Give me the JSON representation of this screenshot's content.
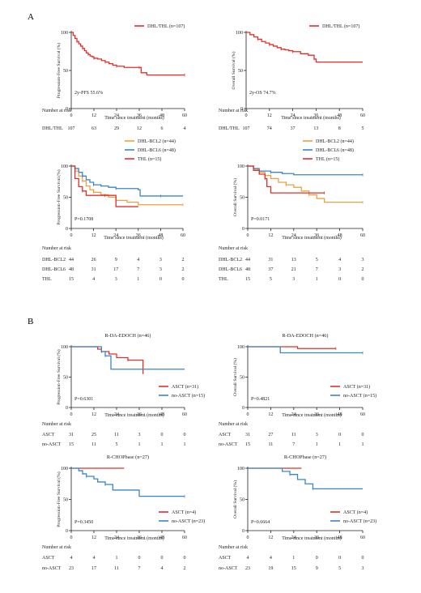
{
  "section_labels": [
    "A",
    "B"
  ],
  "colors": {
    "red": "#e0302a",
    "orange": "#f0a040",
    "blue": "#3a86c8",
    "axis": "#222222"
  },
  "chart_data": [
    {
      "type": "line",
      "panel": "a1",
      "ylabel": "Progression-Free Survival (%)",
      "xlabel": "Time since treatment (months)",
      "xticks": [
        0,
        12,
        24,
        36,
        48,
        60
      ],
      "yticks": [
        0,
        50,
        100
      ],
      "xlim": [
        0,
        60
      ],
      "ylim": [
        0,
        100
      ],
      "annotation": "2y-PFS 55.6%",
      "series": [
        {
          "name": "DHL/THL (n=107)",
          "color": "red",
          "x": [
            0,
            1,
            2,
            3,
            4,
            5,
            6,
            7,
            8,
            9,
            10,
            11,
            12,
            14,
            16,
            18,
            20,
            22,
            24,
            28,
            32,
            36,
            37,
            40,
            60
          ],
          "y": [
            100,
            96,
            92,
            88,
            85,
            82,
            79,
            76,
            73,
            71,
            69,
            68,
            66,
            65,
            63,
            61,
            59,
            57,
            55.6,
            54,
            54,
            54,
            47,
            44,
            44
          ]
        }
      ],
      "risk_table": {
        "label": "Number at risk",
        "rows": [
          {
            "name": "DHL/THL",
            "values": [
              "107",
              "63",
              "29",
              "12",
              "6",
              "4"
            ]
          }
        ]
      }
    },
    {
      "type": "line",
      "panel": "a2",
      "ylabel": "Overall Survival (%)",
      "xlabel": "Time since treatment (months)",
      "xticks": [
        0,
        12,
        24,
        36,
        48,
        60
      ],
      "yticks": [
        0,
        50,
        100
      ],
      "xlim": [
        0,
        60
      ],
      "ylim": [
        0,
        100
      ],
      "annotation": "2y-OS 74.7%",
      "series": [
        {
          "name": "DHL/THL (n=107)",
          "color": "red",
          "x": [
            0,
            2,
            4,
            6,
            8,
            10,
            12,
            14,
            16,
            18,
            20,
            22,
            24,
            28,
            32,
            35,
            36,
            60
          ],
          "y": [
            100,
            97,
            94,
            91,
            88,
            86,
            84,
            82,
            80,
            78,
            77,
            76,
            74.7,
            72,
            70,
            65,
            61,
            61
          ]
        }
      ],
      "risk_table": {
        "label": "Number at risk",
        "rows": [
          {
            "name": "DHL/THL",
            "values": [
              "107",
              "74",
              "37",
              "13",
              "8",
              "5"
            ]
          }
        ]
      }
    },
    {
      "type": "line",
      "panel": "a3",
      "ylabel": "Progression-Free Survival (%)",
      "xlabel": "Time since treatment (months)",
      "xticks": [
        0,
        12,
        24,
        36,
        48,
        60
      ],
      "yticks": [
        0,
        50,
        100
      ],
      "xlim": [
        0,
        60
      ],
      "ylim": [
        0,
        100
      ],
      "annotation": "P=0.1708",
      "series": [
        {
          "name": "DHL-BCL2 (n=44)",
          "color": "orange",
          "x": [
            0,
            2,
            4,
            6,
            8,
            10,
            12,
            16,
            20,
            24,
            30,
            36,
            60
          ],
          "y": [
            100,
            92,
            84,
            76,
            68,
            62,
            58,
            54,
            50,
            45,
            42,
            38,
            38
          ]
        },
        {
          "name": "DHL-BCL6 (n=48)",
          "color": "blue",
          "x": [
            0,
            2,
            4,
            6,
            8,
            10,
            12,
            16,
            20,
            24,
            36,
            37,
            48,
            60
          ],
          "y": [
            100,
            96,
            90,
            84,
            78,
            74,
            70,
            68,
            66,
            64,
            62,
            52,
            52,
            52
          ]
        },
        {
          "name": "THL (n=15)",
          "color": "red",
          "x": [
            0,
            2,
            4,
            6,
            8,
            10,
            18,
            24,
            36
          ],
          "y": [
            100,
            80,
            67,
            60,
            53,
            53,
            53,
            35,
            35
          ]
        }
      ],
      "risk_table": {
        "label": "Number at risk",
        "rows": [
          {
            "name": "DHL-BCL2",
            "values": [
              "44",
              "26",
              "9",
              "4",
              "3",
              "2"
            ]
          },
          {
            "name": "DHL-BCL6",
            "values": [
              "48",
              "31",
              "17",
              "7",
              "3",
              "2"
            ]
          },
          {
            "name": "THL",
            "values": [
              "15",
              "4",
              "3",
              "1",
              "0",
              "0"
            ]
          }
        ]
      }
    },
    {
      "type": "line",
      "panel": "a4",
      "ylabel": "Overall Survival (%)",
      "xlabel": "Time since treatment (months)",
      "xticks": [
        0,
        12,
        24,
        36,
        48,
        60
      ],
      "yticks": [
        0,
        50,
        100
      ],
      "xlim": [
        0,
        60
      ],
      "ylim": [
        0,
        100
      ],
      "annotation": "P=0.0171",
      "series": [
        {
          "name": "DHL-BCL2 (n=44)",
          "color": "orange",
          "x": [
            0,
            3,
            6,
            9,
            12,
            16,
            20,
            24,
            28,
            32,
            36,
            40,
            60
          ],
          "y": [
            100,
            95,
            90,
            85,
            80,
            74,
            70,
            66,
            60,
            54,
            48,
            42,
            42
          ]
        },
        {
          "name": "DHL-BCL6 (n=48)",
          "color": "blue",
          "x": [
            0,
            3,
            6,
            12,
            18,
            24,
            60
          ],
          "y": [
            100,
            96,
            92,
            90,
            88,
            86,
            86
          ]
        },
        {
          "name": "THL (n=15)",
          "color": "red",
          "x": [
            0,
            3,
            6,
            9,
            10,
            12,
            40
          ],
          "y": [
            100,
            93,
            87,
            80,
            67,
            57,
            57
          ]
        }
      ],
      "risk_table": {
        "label": "Number at risk",
        "rows": [
          {
            "name": "DHL-BCL2",
            "values": [
              "44",
              "31",
              "13",
              "5",
              "4",
              "3"
            ]
          },
          {
            "name": "DHL-BCL6",
            "values": [
              "48",
              "37",
              "21",
              "7",
              "3",
              "2"
            ]
          },
          {
            "name": "THL",
            "values": [
              "15",
              "5",
              "3",
              "1",
              "0",
              "0"
            ]
          }
        ]
      }
    },
    {
      "type": "line",
      "panel": "b1",
      "title": "R-DA-EDOCH (n=46)",
      "ylabel": "Progression-Free Survival (%)",
      "xlabel": "Time since treatment (months)",
      "xticks": [
        0,
        12,
        24,
        36,
        48,
        60
      ],
      "yticks": [
        0,
        50,
        100
      ],
      "xlim": [
        0,
        60
      ],
      "ylim": [
        0,
        100
      ],
      "annotation": "P=0.6301",
      "series": [
        {
          "name": "ASCT (n=31)",
          "color": "red",
          "x": [
            0,
            12,
            14,
            16,
            20,
            24,
            30,
            36,
            38
          ],
          "y": [
            100,
            100,
            96,
            92,
            88,
            82,
            78,
            78,
            55
          ]
        },
        {
          "name": "no-ASCT (n=15)",
          "color": "blue",
          "x": [
            0,
            12,
            16,
            18,
            21,
            60
          ],
          "y": [
            100,
            100,
            92,
            85,
            63,
            63
          ]
        }
      ],
      "risk_table": {
        "label": "Number at risk",
        "rows": [
          {
            "name": "ASCT",
            "values": [
              "31",
              "25",
              "11",
              "3",
              "0",
              "0"
            ]
          },
          {
            "name": "no-ASCT",
            "values": [
              "15",
              "11",
              "5",
              "1",
              "1",
              "1"
            ]
          }
        ]
      }
    },
    {
      "type": "line",
      "panel": "b2",
      "title": "R-DA-EDOCH (n=46)",
      "ylabel": "Overall Survival (%)",
      "xlabel": "Time since treatment (months)",
      "xticks": [
        0,
        12,
        24,
        36,
        48,
        60
      ],
      "yticks": [
        0,
        50,
        100
      ],
      "xlim": [
        0,
        60
      ],
      "ylim": [
        0,
        100
      ],
      "annotation": "P=0.4821",
      "series": [
        {
          "name": "ASCT (n=31)",
          "color": "red",
          "x": [
            0,
            18,
            26,
            46
          ],
          "y": [
            100,
            100,
            97,
            97
          ]
        },
        {
          "name": "no-ASCT (n=15)",
          "color": "blue",
          "x": [
            0,
            14,
            17,
            60
          ],
          "y": [
            100,
            100,
            90,
            90
          ]
        }
      ],
      "risk_table": {
        "label": "Number at risk",
        "rows": [
          {
            "name": "ASCT",
            "values": [
              "31",
              "27",
              "11",
              "3",
              "0",
              "0"
            ]
          },
          {
            "name": "no-ASCT",
            "values": [
              "15",
              "11",
              "7",
              "1",
              "1",
              "1"
            ]
          }
        ]
      }
    },
    {
      "type": "line",
      "panel": "b3",
      "title": "R-CHOPbase (n=27)",
      "ylabel": "Progression-Free Survival (%)",
      "xlabel": "Time since treatment (months)",
      "xticks": [
        0,
        12,
        24,
        36,
        48,
        60
      ],
      "yticks": [
        0,
        50,
        100
      ],
      "xlim": [
        0,
        60
      ],
      "ylim": [
        0,
        100
      ],
      "annotation": "P=0.3450",
      "series": [
        {
          "name": "ASCT (n=4)",
          "color": "red",
          "x": [
            0,
            28
          ],
          "y": [
            100,
            100
          ]
        },
        {
          "name": "no-ASCT (n=23)",
          "color": "blue",
          "x": [
            0,
            4,
            6,
            8,
            12,
            14,
            18,
            22,
            36,
            60
          ],
          "y": [
            100,
            96,
            91,
            87,
            83,
            78,
            74,
            65,
            55,
            55
          ]
        }
      ],
      "risk_table": {
        "label": "Number at risk",
        "rows": [
          {
            "name": "ASCT",
            "values": [
              "4",
              "4",
              "1",
              "0",
              "0",
              "0"
            ]
          },
          {
            "name": "no-ASCT",
            "values": [
              "23",
              "17",
              "11",
              "7",
              "4",
              "2"
            ]
          }
        ]
      }
    },
    {
      "type": "line",
      "panel": "b4",
      "title": "R-CHOPbase (n=27)",
      "ylabel": "Overall Survival (%)",
      "xlabel": "Time since treatment (months)",
      "xticks": [
        0,
        12,
        24,
        36,
        48,
        60
      ],
      "yticks": [
        0,
        50,
        100
      ],
      "xlim": [
        0,
        60
      ],
      "ylim": [
        0,
        100
      ],
      "annotation": "P=0.6664",
      "series": [
        {
          "name": "ASCT (n=4)",
          "color": "red",
          "x": [
            0,
            28
          ],
          "y": [
            100,
            100
          ]
        },
        {
          "name": "no-ASCT (n=23)",
          "color": "blue",
          "x": [
            0,
            14,
            18,
            22,
            26,
            30,
            34,
            60
          ],
          "y": [
            100,
            100,
            95,
            90,
            82,
            75,
            67,
            67
          ]
        }
      ],
      "risk_table": {
        "label": "Number at risk",
        "rows": [
          {
            "name": "ASCT",
            "values": [
              "4",
              "4",
              "1",
              "0",
              "0",
              "0"
            ]
          },
          {
            "name": "no-ASCT",
            "values": [
              "23",
              "19",
              "15",
              "9",
              "5",
              "3"
            ]
          }
        ]
      }
    }
  ]
}
